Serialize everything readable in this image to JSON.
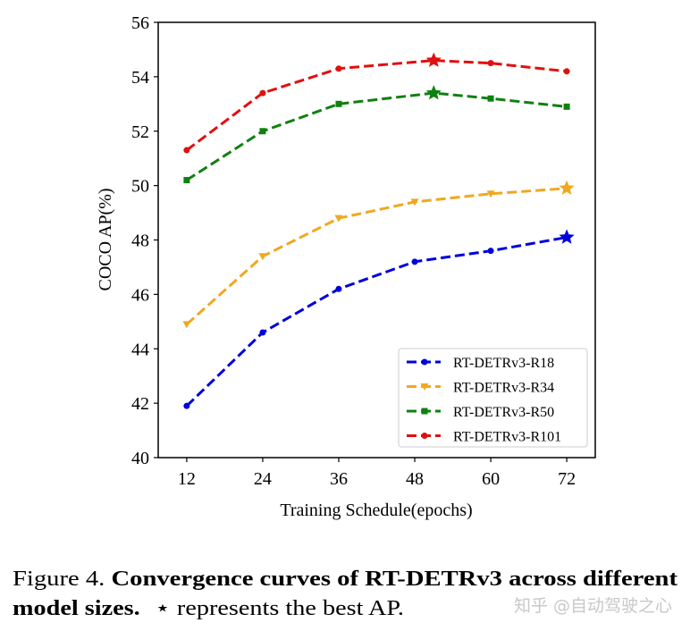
{
  "chart_data": {
    "type": "line",
    "xlabel": "Training Schedule(epochs)",
    "ylabel": "COCO AP(%)",
    "xticks": [
      12,
      24,
      36,
      48,
      60,
      72
    ],
    "yticks": [
      40,
      42,
      44,
      46,
      48,
      50,
      52,
      54,
      56
    ],
    "xlim": [
      7.5,
      76.5
    ],
    "ylim": [
      40,
      56
    ],
    "grid": false,
    "legend_position": "lower-right",
    "series": [
      {
        "name": "RT-DETRv3-R18",
        "color": "#0000dd",
        "marker": "circle",
        "x": [
          12,
          24,
          36,
          48,
          60,
          72
        ],
        "y": [
          41.9,
          44.6,
          46.2,
          47.2,
          47.6,
          48.1
        ],
        "best_index": 5
      },
      {
        "name": "RT-DETRv3-R34",
        "color": "#f0a820",
        "marker": "triangle-down",
        "x": [
          12,
          24,
          36,
          48,
          60,
          72
        ],
        "y": [
          44.9,
          47.4,
          48.8,
          49.4,
          49.7,
          49.9
        ],
        "best_index": 5
      },
      {
        "name": "RT-DETRv3-R50",
        "color": "#108010",
        "marker": "square",
        "x": [
          12,
          24,
          36,
          51,
          60,
          72
        ],
        "y": [
          50.2,
          52.0,
          53.0,
          53.4,
          53.2,
          52.9
        ],
        "best_index": 3
      },
      {
        "name": "RT-DETRv3-R101",
        "color": "#e01010",
        "marker": "circle",
        "x": [
          12,
          24,
          36,
          51,
          60,
          72
        ],
        "y": [
          51.3,
          53.4,
          54.3,
          54.6,
          54.5,
          54.2
        ],
        "best_index": 3
      }
    ]
  },
  "caption": {
    "label": "Figure 4.",
    "bold_line1": "Convergence curves of RT-DETRv3 across different",
    "bold_line2": "model sizes.",
    "star": "⋆",
    "rest": "represents the best AP."
  },
  "watermark": "知乎 @自动驾驶之心"
}
